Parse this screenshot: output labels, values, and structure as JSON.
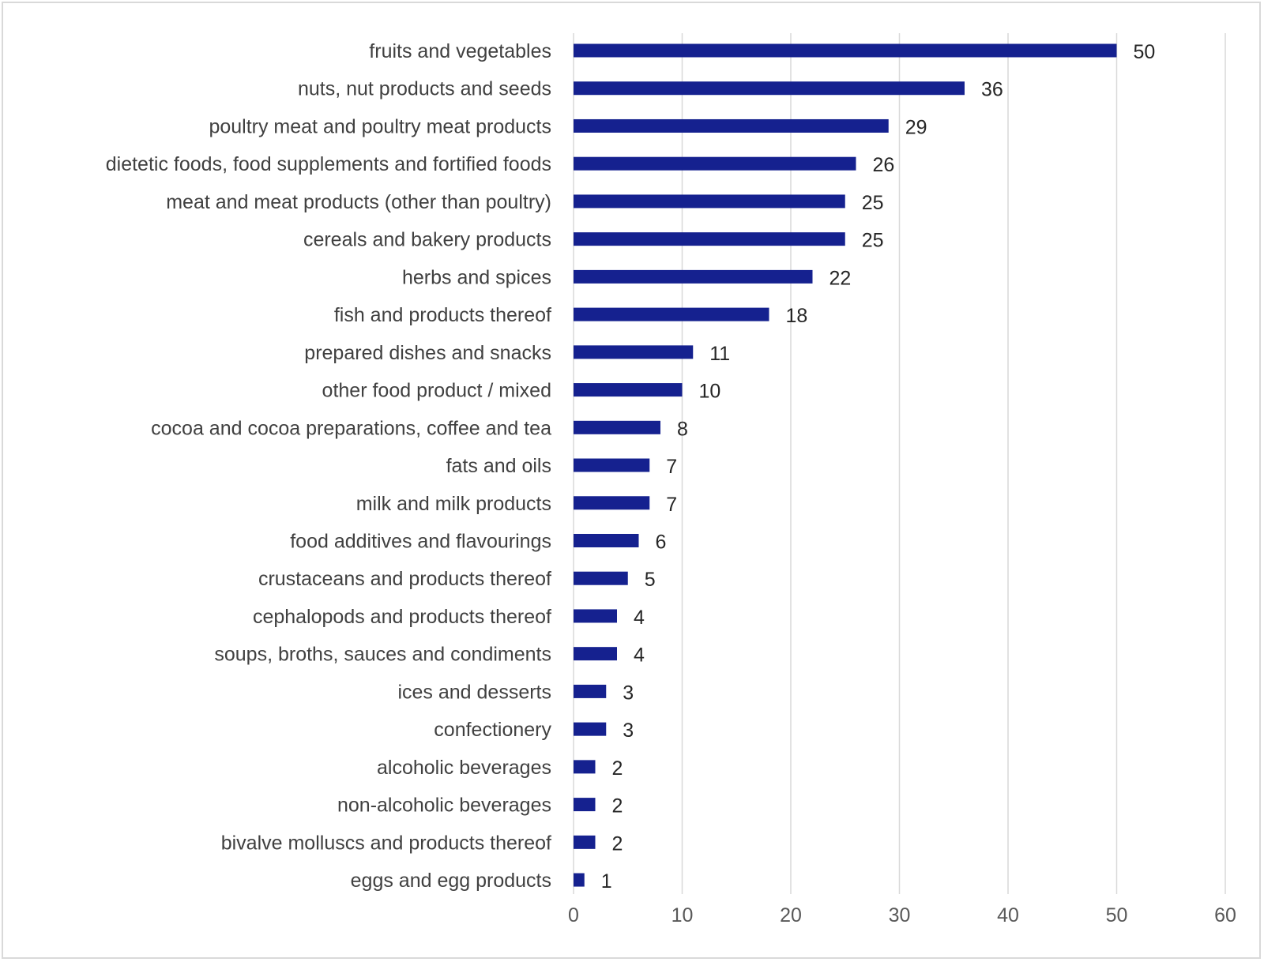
{
  "chart_data": {
    "type": "bar",
    "orientation": "horizontal",
    "title": "",
    "xlabel": "",
    "ylabel": "",
    "categories": [
      "fruits and vegetables",
      "nuts, nut products and seeds",
      "poultry meat and poultry meat products",
      "dietetic foods, food supplements and fortified foods",
      "meat and meat products (other than poultry)",
      "cereals and bakery products",
      "herbs and spices",
      "fish and products thereof",
      "prepared dishes and snacks",
      "other food product / mixed",
      "cocoa and cocoa preparations, coffee and tea",
      "fats and oils",
      "milk and milk products",
      "food additives and flavourings",
      "crustaceans and products thereof",
      "cephalopods and products thereof",
      "soups, broths, sauces and condiments",
      "ices and desserts",
      "confectionery",
      "alcoholic beverages",
      "non-alcoholic beverages",
      "bivalve molluscs and products thereof",
      "eggs and egg products"
    ],
    "values": [
      50,
      36,
      29,
      26,
      25,
      25,
      22,
      18,
      11,
      10,
      8,
      7,
      7,
      6,
      5,
      4,
      4,
      3,
      3,
      2,
      2,
      2,
      1
    ],
    "xlim": [
      0,
      60
    ],
    "xticks": [
      0,
      10,
      20,
      30,
      40,
      50,
      60
    ],
    "grid": "vertical",
    "data_labels": true,
    "legend": "none",
    "colors": {
      "bar": "#15218f",
      "grid": "#d9d9d9",
      "border": "#d9d9d9"
    }
  }
}
